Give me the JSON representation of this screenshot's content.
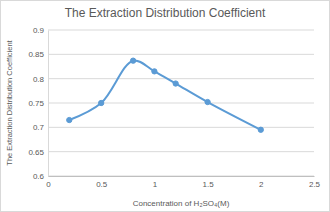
{
  "chart_data": {
    "type": "line",
    "title": "The Extraction Distribution Coefficient",
    "x_label": "Concentration of H₂SO₄(M)",
    "y_label": "The Extraction Distribution Coefficient",
    "x": [
      0.2,
      0.5,
      0.8,
      1.0,
      1.2,
      1.5,
      2.0
    ],
    "values": [
      0.715,
      0.75,
      0.837,
      0.815,
      0.79,
      0.752,
      0.695
    ],
    "color": "#5b9bd5",
    "marker": "circle",
    "line_style": "solid",
    "xlim": [
      0,
      2.5
    ],
    "xticks": [
      0,
      0.5,
      1,
      1.5,
      2,
      2.5
    ],
    "ylim": [
      0.6,
      0.9
    ],
    "yticks": [
      0.6,
      0.65,
      0.7,
      0.75,
      0.8,
      0.85,
      0.9
    ],
    "grid": true
  }
}
